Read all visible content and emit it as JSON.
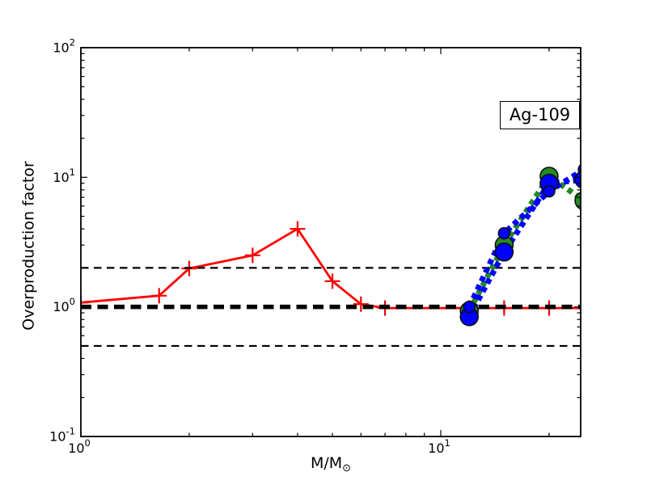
{
  "chart_data": {
    "type": "line",
    "title": "",
    "ylabel": "Overproduction factor",
    "xlabel_main": "M/M",
    "xlabel_sub": "⊙",
    "annotation": "Ag-109",
    "x_scale": "log",
    "y_scale": "log",
    "xlim": [
      1.0,
      24.6
    ],
    "ylim": [
      0.1,
      100
    ],
    "x_tick_exponents": [
      0,
      1
    ],
    "y_tick_exponents": [
      2,
      1,
      0,
      -1
    ],
    "grid": false,
    "legend": "none",
    "colors": {
      "red": "#ff0000",
      "green": "#228B22",
      "blue": "#0000ff",
      "reference": "#000000",
      "marker_edge": "#0a0a0a"
    },
    "reference_lines": [
      {
        "y": 2.0,
        "style": "dashed-thin"
      },
      {
        "y": 1.0,
        "style": "dashed-thick"
      },
      {
        "y": 0.5,
        "style": "dashed-thin"
      }
    ],
    "series": [
      {
        "name": "low-mass-red-solid-plus",
        "color_key": "red",
        "line": "solid",
        "marker": "plus",
        "x": [
          1.0,
          1.65,
          2.0,
          3.0,
          4.0,
          5.0,
          6.0,
          7.0,
          12.0,
          15.0,
          20.0,
          25.0
        ],
        "y": [
          1.08,
          1.22,
          1.98,
          2.5,
          4.0,
          1.58,
          1.05,
          0.98,
          0.98,
          0.98,
          0.98,
          0.98
        ]
      },
      {
        "name": "massive-green-dashed-circles",
        "color_key": "green",
        "line": "dashed-thick",
        "marker": "circle-large",
        "x": [
          12.0,
          15.0,
          20.0,
          25.0
        ],
        "y": [
          0.93,
          3.0,
          10.2,
          6.6
        ]
      },
      {
        "name": "massive-blue-dashed-large-circles",
        "color_key": "blue",
        "line": "dashed-thick",
        "marker": "circle-large",
        "x": [
          12.0,
          15.0,
          20.0,
          25.0
        ],
        "y": [
          0.84,
          2.65,
          9.0,
          9.6
        ]
      },
      {
        "name": "massive-blue-dashed-small-circles",
        "color_key": "blue",
        "line": "dashed-thick",
        "marker": "circle-small",
        "x": [
          12.0,
          15.0,
          20.0,
          25.0
        ],
        "y": [
          1.0,
          3.7,
          7.8,
          11.5
        ]
      }
    ]
  }
}
